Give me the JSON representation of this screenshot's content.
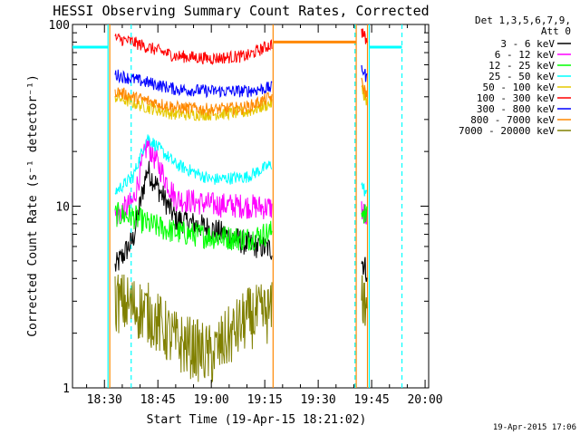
{
  "chart_data": {
    "type": "line",
    "title": "HESSI Observing Summary Count Rates, Corrected",
    "xlabel": "Start Time (19-Apr-15 18:21:02)",
    "ylabel": "Corrected Count Rate (s⁻¹ detector⁻¹)",
    "x_unit": "UT time",
    "xlim": [
      "18:21:02",
      "20:01:00"
    ],
    "x_ticks": [
      "18:30",
      "18:45",
      "19:00",
      "19:15",
      "19:30",
      "19:45",
      "20:00"
    ],
    "yscale": "log",
    "ylim": [
      1,
      100
    ],
    "y_ticks": [
      "1",
      "10",
      "100"
    ],
    "grid": false,
    "legend": {
      "placement": "right",
      "header": [
        "Det 1,3,5,6,7,9,",
        "Att 0"
      ]
    },
    "series": [
      {
        "name": "3 - 6 keV",
        "color": "#000000",
        "level": 5.5,
        "x": [
          "18:33",
          "18:38",
          "18:42",
          "18:50",
          "19:00",
          "19:10",
          "19:17"
        ],
        "y": [
          4.6,
          6.5,
          16,
          8.5,
          7.5,
          6.2,
          5.8
        ]
      },
      {
        "name": "6 - 12 keV",
        "color": "#ff00ff",
        "level": 10,
        "x": [
          "18:33",
          "18:38",
          "18:42",
          "18:50",
          "19:00",
          "19:10",
          "19:17"
        ],
        "y": [
          8.8,
          10.5,
          22,
          11,
          10.2,
          10,
          9.8
        ]
      },
      {
        "name": "12 - 25 keV",
        "color": "#00ff00",
        "level": 7,
        "x": [
          "18:33",
          "18:38",
          "18:42",
          "18:50",
          "19:00",
          "19:10",
          "19:17"
        ],
        "y": [
          9,
          8.8,
          8,
          7.2,
          6.8,
          6.6,
          7.2
        ]
      },
      {
        "name": "25 - 50 keV",
        "color": "#00ffff",
        "level": 14,
        "x": [
          "18:33",
          "18:38",
          "18:42",
          "18:50",
          "19:00",
          "19:10",
          "19:17"
        ],
        "y": [
          12,
          14.5,
          24,
          17,
          14,
          14.5,
          17
        ]
      },
      {
        "name": "50 - 100 keV",
        "color": "#e6c800",
        "level": 33,
        "x": [
          "18:33",
          "18:38",
          "18:42",
          "18:50",
          "19:00",
          "19:10",
          "19:17"
        ],
        "y": [
          40,
          37,
          35,
          32,
          32,
          33,
          37
        ]
      },
      {
        "name": "100 - 300 keV",
        "color": "#ff0000",
        "level": 70,
        "x": [
          "18:33",
          "18:38",
          "18:42",
          "18:50",
          "19:00",
          "19:10",
          "19:17"
        ],
        "y": [
          84,
          80,
          75,
          67,
          65,
          67,
          78
        ]
      },
      {
        "name": "300 - 800 keV",
        "color": "#0000ff",
        "level": 45,
        "x": [
          "18:33",
          "18:38",
          "18:42",
          "18:50",
          "19:00",
          "19:10",
          "19:17"
        ],
        "y": [
          53,
          50,
          48,
          44,
          43,
          43,
          45
        ]
      },
      {
        "name": "800 - 7000 keV",
        "color": "#ff8800",
        "level": 37,
        "x": [
          "18:33",
          "18:38",
          "18:42",
          "18:50",
          "19:00",
          "19:10",
          "19:17"
        ],
        "y": [
          43,
          40,
          38,
          35,
          34,
          35,
          40
        ]
      },
      {
        "name": "7000 - 20000 keV",
        "color": "#808000",
        "level": 2.5,
        "x": [
          "18:33",
          "18:38",
          "18:42",
          "18:50",
          "19:00",
          "19:10",
          "19:17"
        ],
        "y": [
          3,
          2.8,
          2.6,
          1.8,
          1.5,
          2.4,
          2.6
        ]
      }
    ]
  },
  "footer": {
    "timestamp": "19-Apr-2015 17:06"
  }
}
